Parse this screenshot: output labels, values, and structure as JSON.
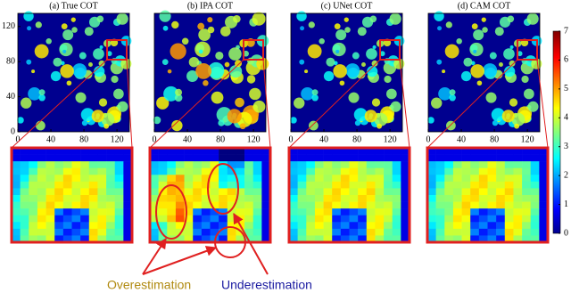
{
  "chart_data": [
    {
      "type": "heatmap",
      "title": "(a) True COT",
      "xlim": [
        0,
        135
      ],
      "ylim": [
        0,
        135
      ],
      "xticks": [
        0,
        40,
        80,
        120
      ],
      "yticks": [
        0,
        40,
        80,
        120
      ]
    },
    {
      "type": "heatmap",
      "title": "(b) IPA COT",
      "xlim": [
        0,
        135
      ],
      "ylim": [
        0,
        135
      ],
      "xticks": [
        0,
        40,
        80,
        120
      ]
    },
    {
      "type": "heatmap",
      "title": "(c) UNet COT",
      "xlim": [
        0,
        135
      ],
      "ylim": [
        0,
        135
      ],
      "xticks": [
        0,
        40,
        80,
        120
      ]
    },
    {
      "type": "heatmap",
      "title": "(d) CAM COT",
      "xlim": [
        0,
        135
      ],
      "ylim": [
        0,
        135
      ],
      "xticks": [
        0,
        40,
        80,
        120
      ]
    }
  ],
  "colorbar": {
    "lim": [
      0,
      7
    ],
    "ticks": [
      0,
      1,
      2,
      3,
      4,
      5,
      6,
      7
    ]
  },
  "annotations": {
    "over": "Overestimation",
    "under": "Underestimation"
  }
}
